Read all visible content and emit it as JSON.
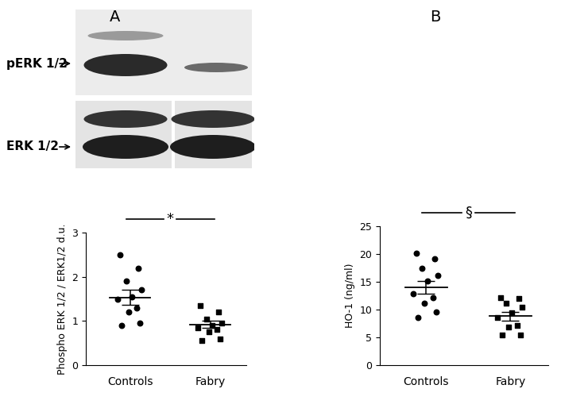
{
  "chart_data": [
    {
      "type": "scatter",
      "panel": "A",
      "y_label": "Phospho ERK 1/2 / ERK1/2 d.u.",
      "ylim": [
        0,
        3
      ],
      "yticks": [
        0,
        1,
        2,
        3
      ],
      "significance": "*",
      "series": [
        {
          "name": "Controls",
          "marker": "circle",
          "color": "#000000",
          "values": [
            2.5,
            2.2,
            1.9,
            1.7,
            1.55,
            1.5,
            1.3,
            1.2,
            0.95,
            0.9
          ],
          "mean": 1.53,
          "error": 0.17
        },
        {
          "name": "Fabry",
          "marker": "square",
          "color": "#000000",
          "values": [
            1.35,
            1.2,
            1.05,
            0.95,
            0.9,
            0.85,
            0.8,
            0.75,
            0.6,
            0.55
          ],
          "mean": 0.92,
          "error": 0.08
        }
      ]
    },
    {
      "type": "scatter",
      "panel": "B",
      "y_label": "HO-1 (ng/ml)",
      "ylim": [
        0,
        25
      ],
      "yticks": [
        0,
        5,
        10,
        15,
        20,
        25
      ],
      "significance": "§",
      "series": [
        {
          "name": "Controls",
          "marker": "circle",
          "color": "#000000",
          "values": [
            20.2,
            19.2,
            17.5,
            16.2,
            15.2,
            12.8,
            12.2,
            11.2,
            9.6,
            8.6
          ],
          "mean": 14.0,
          "error": 1.2
        },
        {
          "name": "Fabry",
          "marker": "square",
          "color": "#000000",
          "values": [
            12.1,
            12.0,
            11.2,
            10.5,
            9.4,
            8.6,
            7.2,
            6.8,
            5.5,
            5.4
          ],
          "mean": 8.8,
          "error": 0.8
        }
      ]
    }
  ],
  "blot": {
    "labels": [
      "pERK 1/2",
      "ERK 1/2"
    ]
  }
}
